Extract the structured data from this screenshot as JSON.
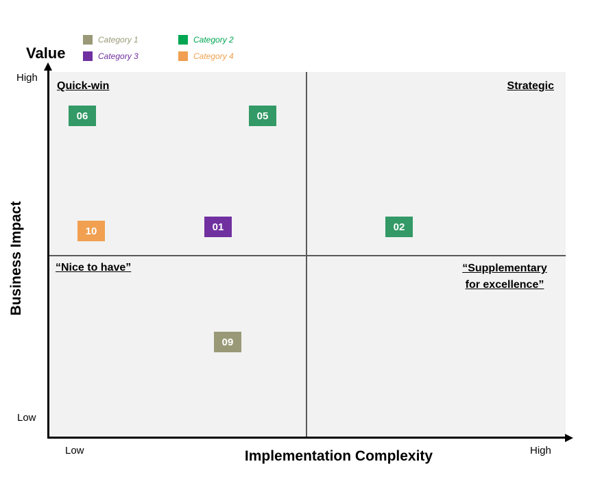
{
  "title": "Value",
  "axes": {
    "y_label": "Business Impact",
    "x_label": "Implementation Complexity",
    "y_high": "High",
    "y_low": "Low",
    "x_low": "Low",
    "x_high": "High"
  },
  "quadrants": {
    "top_left": "Quick-win",
    "top_right": "Strategic",
    "bottom_left": "“Nice to have”",
    "bottom_right_line1": "“Supplementary",
    "bottom_right_line2": "for excellence”"
  },
  "legend": [
    {
      "label": "Category 1",
      "color": "#999977"
    },
    {
      "label": "Category 2",
      "color": "#00a651"
    },
    {
      "label": "Category 3",
      "color": "#7030a0"
    },
    {
      "label": "Category 4",
      "color": "#f0a050"
    }
  ],
  "items": [
    {
      "id": "06",
      "category": "Category 2",
      "color": "#339966"
    },
    {
      "id": "05",
      "category": "Category 2",
      "color": "#339966"
    },
    {
      "id": "10",
      "category": "Category 4",
      "color": "#f0a050"
    },
    {
      "id": "01",
      "category": "Category 3",
      "color": "#7030a0"
    },
    {
      "id": "02",
      "category": "Category 2",
      "color": "#339966"
    },
    {
      "id": "09",
      "category": "Category 1",
      "color": "#999977"
    }
  ]
}
